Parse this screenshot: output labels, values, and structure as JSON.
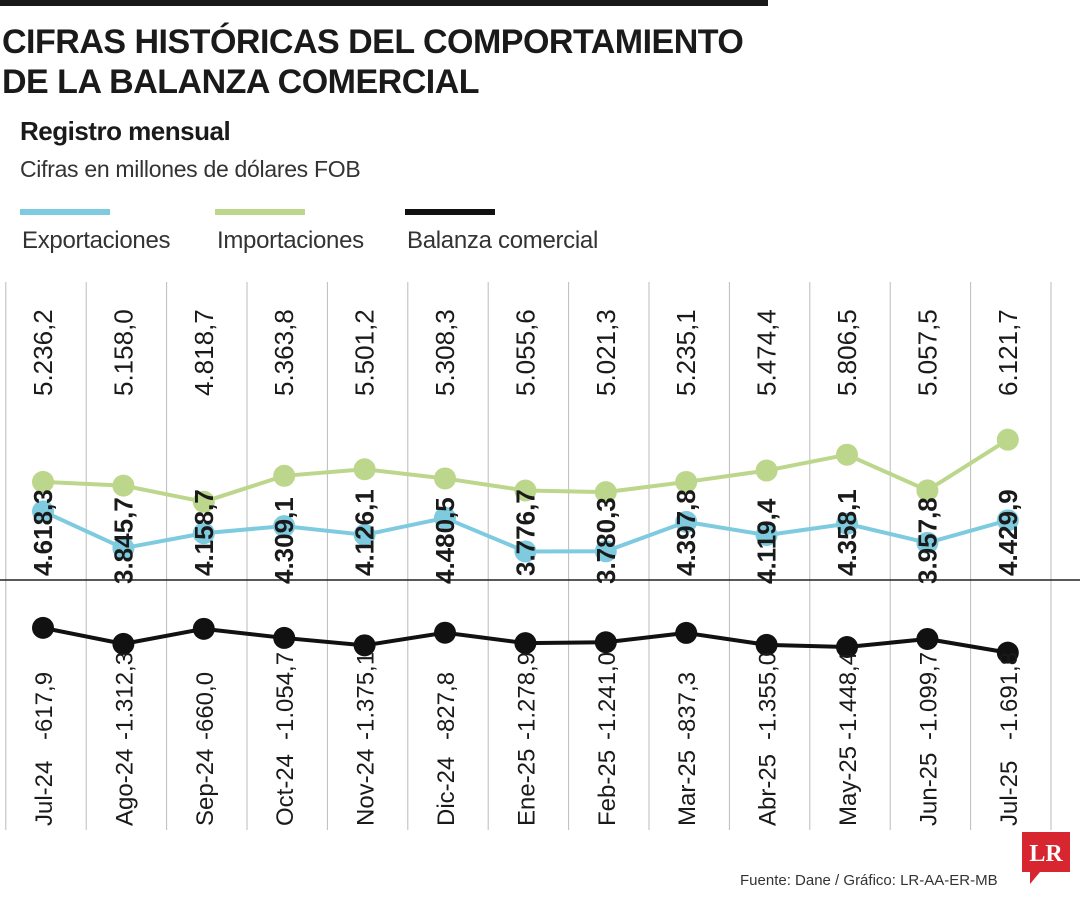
{
  "title_line1": "CIFRAS HISTÓRICAS DEL COMPORTAMIENTO",
  "title_line2": "DE LA BALANZA COMERCIAL",
  "subtitle": "Registro mensual",
  "unit": "Cifras en millones de dólares FOB",
  "source": "Fuente: Dane / Gráfico: LR-AA-ER-MB",
  "logo_text": "LR",
  "colors": {
    "exportaciones": "#7ecbe0",
    "importaciones": "#bcd78b",
    "balanza": "#111111",
    "logo": "#d7262f",
    "grid": "#bbbbbb"
  },
  "chart_data": {
    "type": "line",
    "categories": [
      "Jul-24",
      "Ago-24",
      "Sep-24",
      "Oct-24",
      "Nov-24",
      "Dic-24",
      "Ene-25",
      "Feb-25",
      "Mar-25",
      "Abr-25",
      "May-25",
      "Jun-25",
      "Jul-25"
    ],
    "series": [
      {
        "name": "Exportaciones",
        "values": [
          4618.3,
          3845.7,
          4158.7,
          4309.1,
          4126.1,
          4480.5,
          3776.7,
          3780.3,
          4397.8,
          4119.4,
          4358.1,
          3957.8,
          4429.9
        ],
        "labels": [
          "4.618,3",
          "3.845,7",
          "4.158,7",
          "4.309,1",
          "4.126,1",
          "4.480,5",
          "3.776,7",
          "3.780,3",
          "4.397,8",
          "4.119,4",
          "4.358,1",
          "3.957,8",
          "4.429,9"
        ]
      },
      {
        "name": "Importaciones",
        "values": [
          5236.2,
          5158.0,
          4818.7,
          5363.8,
          5501.2,
          5308.3,
          5055.6,
          5021.3,
          5235.1,
          5474.4,
          5806.5,
          5057.5,
          6121.7
        ],
        "labels": [
          "5.236,2",
          "5.158,0",
          "4.818,7",
          "5.363,8",
          "5.501,2",
          "5.308,3",
          "5.055,6",
          "5.021,3",
          "5.235,1",
          "5.474,4",
          "5.806,5",
          "5.057,5",
          "6.121,7"
        ]
      },
      {
        "name": "Balanza comercial",
        "values": [
          -617.9,
          -1312.3,
          -660.0,
          -1054.7,
          -1375.1,
          -827.8,
          -1278.9,
          -1241.0,
          -837.3,
          -1355.0,
          -1448.4,
          -1099.7,
          -1691.8
        ],
        "labels": [
          "-617,9",
          "-1.312,3",
          "-660,0",
          "-1.054,7",
          "-1.375,1",
          "-827,8",
          "-1.278,9",
          "-1.241,0",
          "-837,3",
          "-1.355,0",
          "-1.448,4",
          "-1.099,7",
          "-1.691,8"
        ]
      }
    ],
    "legend_position": "top-left",
    "grid": "vertical"
  }
}
